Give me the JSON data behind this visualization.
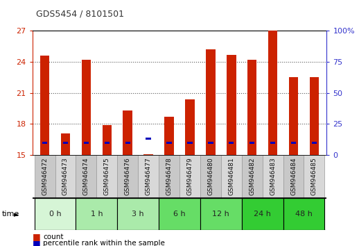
{
  "title": "GDS5454 / 8101501",
  "samples": [
    "GSM946472",
    "GSM946473",
    "GSM946474",
    "GSM946475",
    "GSM946476",
    "GSM946477",
    "GSM946478",
    "GSM946479",
    "GSM946480",
    "GSM946481",
    "GSM946482",
    "GSM946483",
    "GSM946484",
    "GSM946485"
  ],
  "count_values": [
    24.6,
    17.1,
    24.2,
    17.9,
    19.3,
    15.1,
    18.7,
    20.4,
    25.2,
    24.7,
    24.2,
    27.0,
    22.5,
    22.5
  ],
  "blue_pct": [
    10,
    10,
    10,
    10,
    10,
    13,
    10,
    10,
    10,
    10,
    10,
    10,
    10,
    10
  ],
  "time_groups": [
    {
      "label": "0 h",
      "samples": [
        0,
        1
      ],
      "color": "#d6f5d6"
    },
    {
      "label": "1 h",
      "samples": [
        2,
        3
      ],
      "color": "#aaeaaa"
    },
    {
      "label": "3 h",
      "samples": [
        4,
        5
      ],
      "color": "#aaeaaa"
    },
    {
      "label": "6 h",
      "samples": [
        6,
        7
      ],
      "color": "#66dd66"
    },
    {
      "label": "12 h",
      "samples": [
        8,
        9
      ],
      "color": "#66dd66"
    },
    {
      "label": "24 h",
      "samples": [
        10,
        11
      ],
      "color": "#33cc33"
    },
    {
      "label": "48 h",
      "samples": [
        12,
        13
      ],
      "color": "#33cc33"
    }
  ],
  "ylim_left": [
    15,
    27
  ],
  "ylim_right": [
    0,
    100
  ],
  "yticks_left": [
    15,
    18,
    21,
    24,
    27
  ],
  "yticks_right": [
    0,
    25,
    50,
    75,
    100
  ],
  "bar_color_red": "#cc2200",
  "bar_color_blue": "#0000bb",
  "bar_width": 0.45,
  "blue_bar_height": 0.22,
  "background_color": "#ffffff",
  "plot_bg_color": "#ffffff",
  "title_color": "#333333",
  "left_axis_color": "#cc2200",
  "right_axis_color": "#3333cc",
  "cell_colors": [
    "#c8c8c8",
    "#d8d8d8"
  ],
  "grid_color": "#555555",
  "grid_linestyle": ":",
  "grid_linewidth": 0.8,
  "grid_yticks": [
    18,
    21,
    24
  ]
}
